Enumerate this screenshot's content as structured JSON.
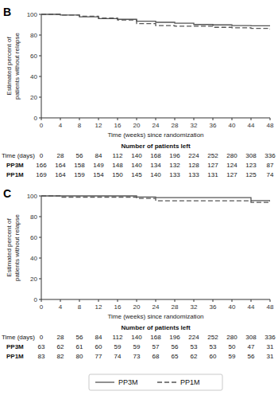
{
  "chart_data": [
    {
      "type": "step",
      "title": "B",
      "xlabel": "Time (weeks) since randomization",
      "ylabel": "Estimated percent of\npatients without relapse",
      "x": [
        0,
        4,
        8,
        12,
        16,
        20,
        24,
        28,
        32,
        36,
        40,
        44,
        48
      ],
      "series": [
        {
          "name": "PP3M",
          "color": "#555555",
          "line_style": "solid",
          "values": [
            100,
            99.4,
            97.6,
            95.8,
            95.2,
            93.4,
            92.3,
            91.5,
            90.2,
            89.8,
            89.2,
            88.9,
            88.5
          ]
        },
        {
          "name": "PP1M",
          "color": "#555555",
          "line_style": "dashed",
          "values": [
            100,
            99.4,
            98.2,
            96.4,
            94.6,
            91.0,
            89.2,
            88.5,
            88.5,
            87.5,
            87.0,
            86.5,
            85.5
          ]
        }
      ],
      "xlim": [
        0,
        48
      ],
      "ylim": [
        0,
        100
      ],
      "xticks": [
        0,
        4,
        8,
        12,
        16,
        20,
        24,
        28,
        32,
        36,
        40,
        44,
        48
      ],
      "yticks": [
        0,
        20,
        40,
        60,
        80,
        100
      ],
      "grid": false,
      "table": {
        "title": "Number of patients left",
        "header": "Time (days)",
        "columns": [
          0,
          28,
          56,
          84,
          112,
          140,
          168,
          196,
          224,
          252,
          280,
          308,
          336
        ],
        "rows": [
          {
            "name": "PP3M",
            "values": [
              166,
              164,
              158,
              149,
              148,
              140,
              134,
              132,
              128,
              127,
              124,
              123,
              87
            ]
          },
          {
            "name": "PP1M",
            "values": [
              169,
              164,
              159,
              154,
              150,
              145,
              140,
              133,
              133,
              131,
              127,
              125,
              74
            ]
          }
        ]
      }
    },
    {
      "type": "step",
      "title": "C",
      "xlabel": "Time (weeks) since randomization",
      "ylabel": "Estimated percent of\npatients without relapse",
      "x": [
        0,
        4,
        8,
        12,
        16,
        20,
        24,
        28,
        32,
        36,
        40,
        44,
        48
      ],
      "series": [
        {
          "name": "PP3M",
          "color": "#555555",
          "line_style": "solid",
          "values": [
            100,
            100,
            100,
            100,
            100,
            99.0,
            98.3,
            98.3,
            98.3,
            98.3,
            98.3,
            95.5,
            94.5
          ]
        },
        {
          "name": "PP1M",
          "color": "#555555",
          "line_style": "dashed",
          "values": [
            100,
            98.8,
            98.8,
            98.8,
            98.8,
            97.6,
            95.3,
            95.3,
            95.3,
            95.3,
            95.3,
            93.8,
            93.8
          ]
        }
      ],
      "xlim": [
        0,
        48
      ],
      "ylim": [
        0,
        100
      ],
      "xticks": [
        0,
        4,
        8,
        12,
        16,
        20,
        24,
        28,
        32,
        36,
        40,
        44,
        48
      ],
      "yticks": [
        0,
        20,
        40,
        60,
        80,
        100
      ],
      "grid": false,
      "legend": "bottom",
      "table": {
        "title": "Number of patients left",
        "header": "Time (days)",
        "columns": [
          0,
          28,
          56,
          84,
          112,
          140,
          168,
          196,
          224,
          252,
          280,
          308,
          336
        ],
        "rows": [
          {
            "name": "PP3M",
            "values": [
              63,
              62,
              61,
              60,
              59,
              59,
              57,
              56,
              53,
              53,
              50,
              47,
              31
            ]
          },
          {
            "name": "PP1M",
            "values": [
              83,
              82,
              80,
              77,
              74,
              73,
              68,
              65,
              62,
              60,
              59,
              56,
              31
            ]
          }
        ]
      }
    }
  ]
}
